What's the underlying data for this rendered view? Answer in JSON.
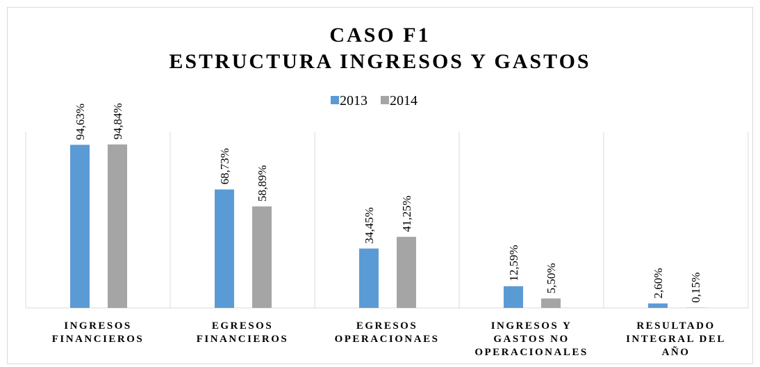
{
  "chart_data": {
    "type": "bar",
    "title": "CASO F1",
    "subtitle": "ESTRUCTURA INGRESOS Y GASTOS",
    "categories": [
      "INGRESOS FINANCIEROS",
      "EGRESOS FINANCIEROS",
      "EGRESOS OPERACIONAES",
      "INGRESOS Y GASTOS NO OPERACIONALES",
      "RESULTADO INTEGRAL DEL AÑO"
    ],
    "series": [
      {
        "name": "2013",
        "color": "#5b9bd5",
        "values": [
          94.63,
          68.73,
          34.45,
          12.59,
          2.6
        ],
        "value_labels": [
          "94,63%",
          "68,73%",
          "34,45%",
          "12,59%",
          "2,60%"
        ]
      },
      {
        "name": "2014",
        "color": "#a5a5a5",
        "values": [
          94.84,
          58.89,
          41.25,
          5.5,
          0.15
        ],
        "value_labels": [
          "94,84%",
          "58,89%",
          "41,25%",
          "5,50%",
          "0,15%"
        ]
      }
    ],
    "ylim": [
      0,
      100
    ],
    "legend": "top"
  }
}
